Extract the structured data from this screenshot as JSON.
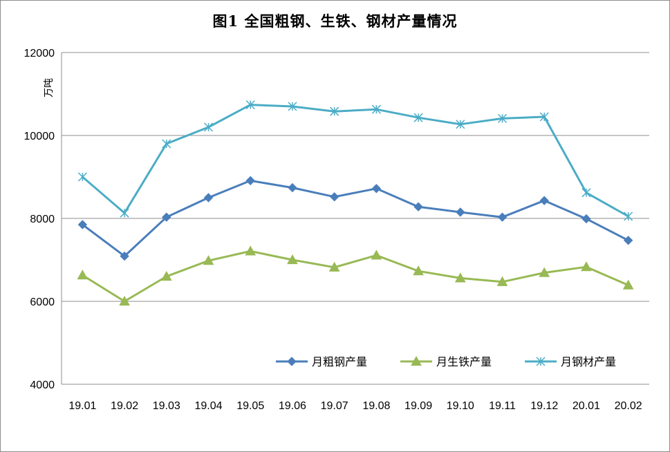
{
  "chart_data": {
    "type": "line",
    "title": "图1    全国粗钢、生铁、钢材产量情况",
    "ylabel": "万吨",
    "xlabel": "",
    "ylim": [
      4000,
      12000
    ],
    "yticks": [
      4000,
      6000,
      8000,
      10000,
      12000
    ],
    "ytick_labels": [
      "4000",
      "6000",
      "8000",
      "10000",
      "12000"
    ],
    "grid": true,
    "legend_position": "bottom-right",
    "categories": [
      "19.01",
      "19.02",
      "19.03",
      "19.04",
      "19.05",
      "19.06",
      "19.07",
      "19.08",
      "19.09",
      "19.10",
      "19.11",
      "19.12",
      "20.01",
      "20.02"
    ],
    "series": [
      {
        "name": "月粗钢产量",
        "color": "#4a7ebb",
        "marker": "diamond",
        "values": [
          7850,
          7090,
          8030,
          8500,
          8910,
          8740,
          8520,
          8720,
          8280,
          8150,
          8030,
          8430,
          7990,
          7470
        ]
      },
      {
        "name": "月生铁产量",
        "color": "#98b954",
        "marker": "triangle",
        "values": [
          6630,
          6000,
          6600,
          6980,
          7210,
          7000,
          6820,
          7110,
          6730,
          6560,
          6470,
          6690,
          6830,
          6390
        ]
      },
      {
        "name": "月钢材产量",
        "color": "#4bacc6",
        "marker": "asterisk",
        "values": [
          9000,
          8130,
          9800,
          10200,
          10740,
          10700,
          10580,
          10630,
          10430,
          10270,
          10410,
          10450,
          8620,
          8050
        ]
      }
    ]
  }
}
